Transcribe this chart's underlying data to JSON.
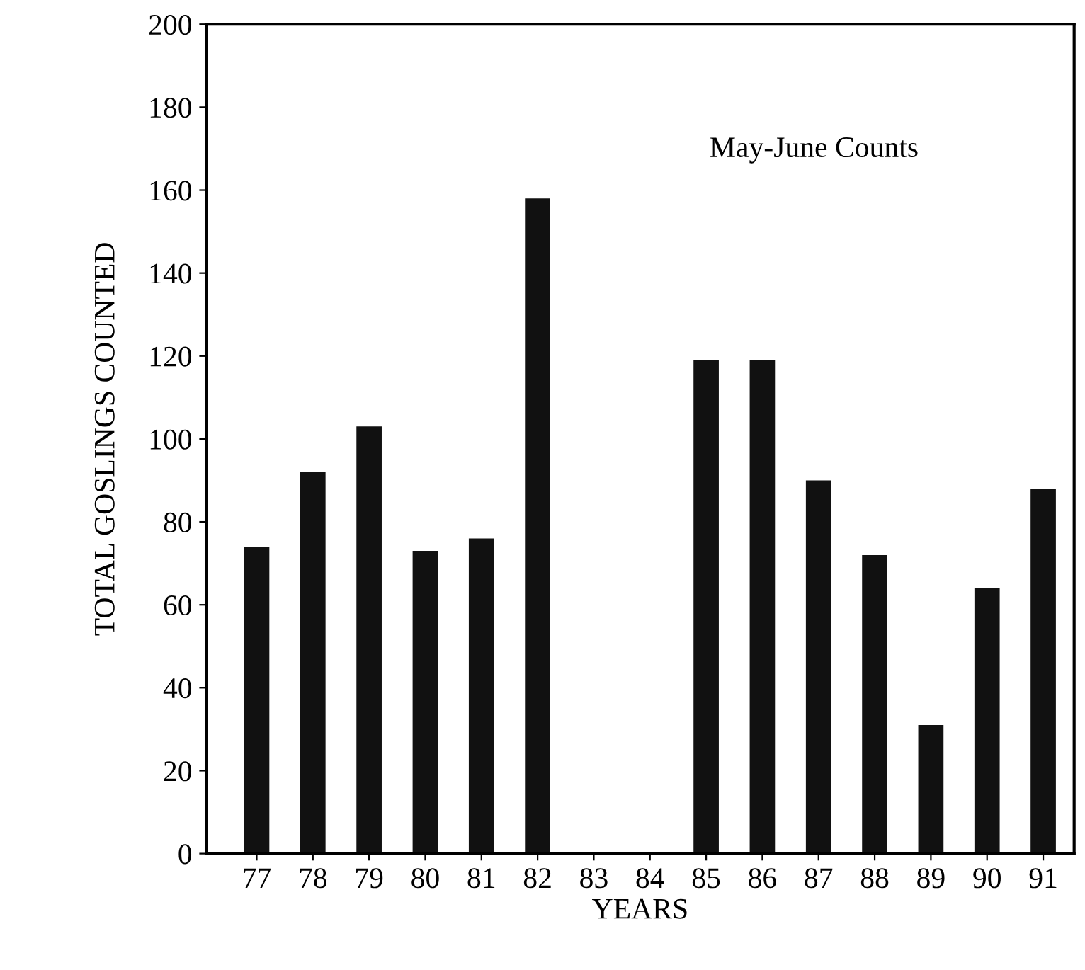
{
  "chart_data": {
    "type": "bar",
    "xlabel": "YEARS",
    "ylabel": "TOTAL GOSLINGS COUNTED",
    "annotations": [
      "May-June Counts"
    ],
    "categories": [
      "77",
      "78",
      "79",
      "80",
      "81",
      "82",
      "83",
      "84",
      "85",
      "86",
      "87",
      "88",
      "89",
      "90",
      "91"
    ],
    "values": [
      74,
      92,
      103,
      73,
      76,
      158,
      null,
      null,
      119,
      119,
      90,
      72,
      31,
      64,
      88
    ],
    "color": "#111111",
    "ylim": [
      0,
      200
    ],
    "yticks": [
      0,
      20,
      40,
      60,
      80,
      100,
      120,
      140,
      160,
      180,
      200
    ],
    "grid": false
  }
}
